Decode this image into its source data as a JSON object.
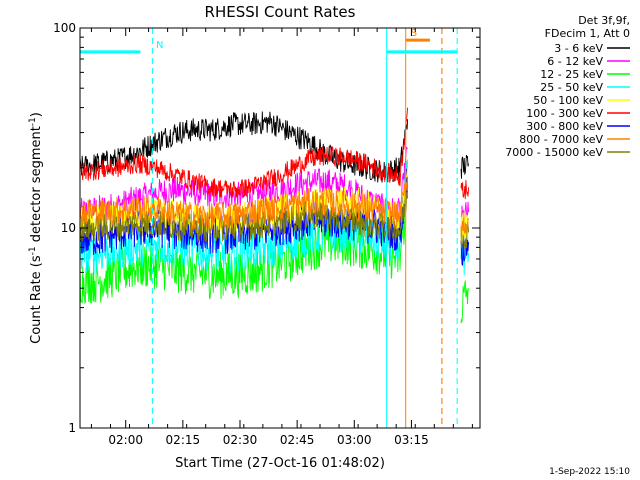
{
  "chart_data": {
    "type": "line",
    "title": "RHESSI Count Rates",
    "xlabel": "Start Time (27-Oct-16 01:48:02)",
    "ylabel_main": "Count Rate (s",
    "ylabel_sup1": "-1",
    "ylabel_mid": " detector segment",
    "ylabel_sup2": "-1",
    "ylabel_end": ")",
    "yscale": "log",
    "ylim": [
      1,
      100
    ],
    "xlim_minutes": [
      0,
      105
    ],
    "x_ticks": [
      {
        "label": "02:00",
        "minute": 12
      },
      {
        "label": "02:15",
        "minute": 27
      },
      {
        "label": "02:30",
        "minute": 42
      },
      {
        "label": "02:45",
        "minute": 57
      },
      {
        "label": "03:00",
        "minute": 72
      },
      {
        "label": "03:15",
        "minute": 87
      }
    ],
    "y_ticks": [
      {
        "label": "1",
        "value": 1
      },
      {
        "label": "10",
        "value": 10
      },
      {
        "label": "100",
        "value": 100
      }
    ],
    "legend_header": [
      "Det 3f,9f,",
      "FDecim 1, Att 0"
    ],
    "legend_position": "top-right, outside plot",
    "series": [
      {
        "name": "3 - 6 keV",
        "color": "#000000",
        "x": [
          0,
          5,
          10,
          15,
          20,
          25,
          30,
          35,
          40,
          45,
          50,
          55,
          60,
          65,
          70,
          75,
          80,
          84,
          86,
          88,
          93,
          98,
          100,
          102
        ],
        "y": [
          20,
          21,
          22,
          24,
          27,
          30,
          31,
          31,
          33,
          33,
          34,
          30,
          27,
          23,
          21,
          20,
          19,
          20,
          35,
          null,
          null,
          null,
          20,
          21
        ]
      },
      {
        "name": "6 - 12 keV",
        "color": "#ff00ff",
        "x": [
          0,
          5,
          10,
          15,
          20,
          25,
          30,
          35,
          40,
          45,
          50,
          55,
          60,
          65,
          70,
          75,
          80,
          84,
          86,
          88,
          93,
          98,
          100,
          102
        ],
        "y": [
          12,
          12.5,
          13,
          14,
          15,
          15.5,
          15,
          14.5,
          14.5,
          14.5,
          15,
          16,
          17,
          17,
          16,
          14,
          12.5,
          12,
          25,
          null,
          null,
          null,
          11,
          12
        ]
      },
      {
        "name": "12 - 25 keV",
        "color": "#00ff00",
        "x": [
          0,
          5,
          10,
          15,
          20,
          25,
          30,
          35,
          40,
          45,
          50,
          55,
          60,
          65,
          70,
          75,
          80,
          84,
          86,
          88,
          93,
          98,
          100,
          102
        ],
        "y": [
          5.5,
          5.5,
          6,
          6.5,
          6.5,
          6.2,
          6,
          5.8,
          5.8,
          6,
          6.5,
          7,
          8,
          8.5,
          8.5,
          8,
          7.5,
          7,
          16,
          null,
          null,
          null,
          4,
          5
        ]
      },
      {
        "name": "25 - 50 keV",
        "color": "#00ffff",
        "x": [
          0,
          5,
          10,
          15,
          20,
          25,
          30,
          35,
          40,
          45,
          50,
          55,
          60,
          65,
          70,
          75,
          80,
          84,
          86,
          88,
          93,
          98,
          100,
          102
        ],
        "y": [
          7.5,
          7.5,
          7.8,
          8,
          8.2,
          8,
          7.8,
          7.5,
          7.5,
          7.8,
          8,
          8.5,
          9,
          9.5,
          9.5,
          9,
          8.5,
          8,
          22,
          null,
          null,
          null,
          7,
          7.5
        ]
      },
      {
        "name": "50 - 100 keV",
        "color": "#ffff00",
        "x": [
          0,
          5,
          10,
          15,
          20,
          25,
          30,
          35,
          40,
          45,
          50,
          55,
          60,
          65,
          70,
          75,
          80,
          84,
          86,
          88,
          93,
          98,
          100,
          102
        ],
        "y": [
          11,
          11,
          11.5,
          12,
          12,
          11.5,
          11,
          11,
          11,
          11.5,
          12,
          12.5,
          13,
          13.5,
          13.5,
          13,
          12,
          11,
          20,
          null,
          null,
          null,
          10,
          10.5
        ]
      },
      {
        "name": "100 - 300 keV",
        "color": "#ff0000",
        "x": [
          0,
          5,
          10,
          15,
          20,
          25,
          30,
          35,
          40,
          45,
          50,
          55,
          60,
          65,
          70,
          75,
          80,
          84,
          86,
          88,
          93,
          98,
          100,
          102
        ],
        "y": [
          19,
          19.5,
          20,
          21,
          20,
          18.5,
          17,
          16,
          15.5,
          16,
          17.5,
          19.5,
          22,
          23,
          22.5,
          21,
          19,
          18,
          40,
          null,
          null,
          null,
          15,
          16
        ]
      },
      {
        "name": "300 - 800 keV",
        "color": "#0000ff",
        "x": [
          0,
          5,
          10,
          15,
          20,
          25,
          30,
          35,
          40,
          45,
          50,
          55,
          60,
          65,
          70,
          75,
          80,
          84,
          86,
          88,
          93,
          98,
          100,
          102
        ],
        "y": [
          9,
          9,
          9.5,
          10,
          10,
          9.8,
          9.5,
          9.3,
          9.3,
          9.5,
          10,
          10.5,
          11,
          11,
          11,
          10.5,
          10,
          9.5,
          18,
          null,
          null,
          null,
          8,
          8.5
        ]
      },
      {
        "name": "800 - 7000 keV",
        "color": "#ff8000",
        "x": [
          0,
          5,
          10,
          15,
          20,
          25,
          30,
          35,
          40,
          45,
          50,
          55,
          60,
          65,
          70,
          75,
          80,
          84,
          86,
          88,
          93,
          98,
          100,
          102
        ],
        "y": [
          12,
          12,
          12.2,
          12.5,
          12.5,
          12,
          11.5,
          11.5,
          11.5,
          12,
          12.5,
          13,
          13.5,
          13.5,
          13,
          12.5,
          12,
          11.5,
          18,
          null,
          null,
          null,
          10,
          11
        ]
      },
      {
        "name": "7000 - 15000 keV",
        "color": "#808000",
        "x": [
          0,
          5,
          10,
          15,
          20,
          25,
          30,
          35,
          40,
          45,
          50,
          55,
          60,
          65,
          70,
          75,
          80,
          84,
          86,
          88,
          93,
          98,
          100,
          102
        ],
        "y": [
          10,
          10,
          10.2,
          10.5,
          10.5,
          10.2,
          10,
          10,
          10,
          10.2,
          10.5,
          11,
          11.5,
          11.5,
          11,
          10.5,
          10,
          9.8,
          15,
          null,
          null,
          null,
          9,
          9.5
        ]
      }
    ],
    "markers": [
      {
        "label": "N",
        "color": "#00ffff",
        "x_start": 0,
        "x_end": 19,
        "y": 76,
        "dash_x": 19
      },
      {
        "label": "S",
        "color": "#ff8000",
        "x_start": 85.5,
        "x_end": 95,
        "y": 87,
        "dash_x": 95
      }
    ],
    "vlines": [
      {
        "x": 80.5,
        "color": "#00ffff",
        "style": "solid"
      },
      {
        "x": 85.5,
        "color": "#ff8000",
        "style": "solid"
      },
      {
        "x": 95,
        "color": "#ff8000",
        "style": "dashed"
      },
      {
        "x": 99,
        "color": "#00ffff",
        "style": "dashed"
      }
    ],
    "cyan_bar_right": {
      "x_start": 80.5,
      "x_end": 99,
      "y": 76
    }
  },
  "footer_date": "1-Sep-2022 15:10"
}
